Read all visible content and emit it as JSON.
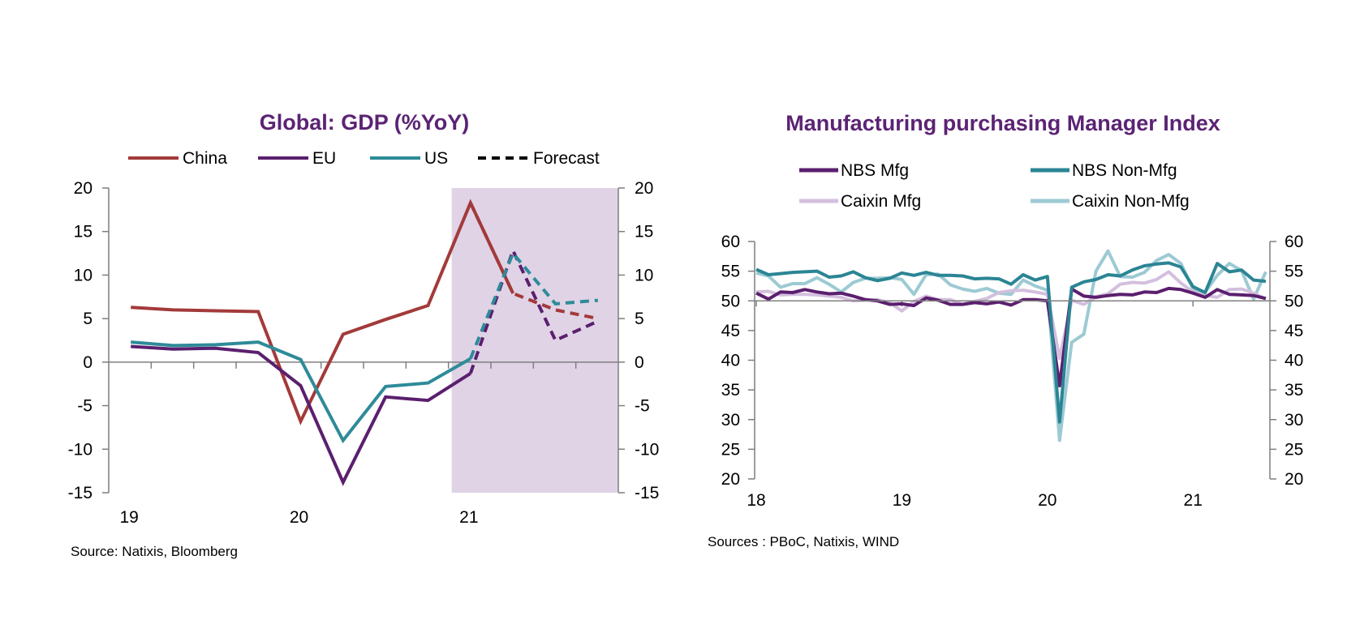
{
  "colors": {
    "title": "#5b2374",
    "shade": "#e0d3e6",
    "China": "#a33a3a",
    "EU": "#5b1f6e",
    "US": "#2e8b99",
    "Forecast": "#000000",
    "NBS Mfg": "#5b1f6e",
    "NBS Non-Mfg": "#2b8594",
    "Caixin Mfg": "#d4bfdf",
    "Caixin Non-Mfg": "#9ccad3"
  },
  "chart_data": [
    {
      "type": "line",
      "title": "Global: GDP (%YoY)",
      "xlabel": "",
      "ylabel": "",
      "ylim": [
        -15,
        20
      ],
      "yticks": [
        20,
        15,
        10,
        5,
        0,
        -5,
        -10,
        -15
      ],
      "xticks": [
        "19",
        "20",
        "21"
      ],
      "x": [
        "19Q1",
        "19Q2",
        "19Q3",
        "19Q4",
        "20Q1",
        "20Q2",
        "20Q3",
        "20Q4",
        "21Q1",
        "21Q2",
        "21Q3",
        "21Q4"
      ],
      "grid": false,
      "dual_axis": true,
      "forecast_shade_from": "21Q1",
      "legend": [
        "China",
        "EU",
        "US",
        "Forecast"
      ],
      "legend_position": "top",
      "series": [
        {
          "name": "China",
          "values": [
            6.3,
            6.0,
            5.9,
            5.8,
            -6.8,
            3.2,
            4.9,
            6.5,
            18.3,
            7.9,
            null,
            null
          ]
        },
        {
          "name": "EU",
          "values": [
            1.8,
            1.5,
            1.6,
            1.1,
            -2.7,
            -13.8,
            -4.0,
            -4.4,
            -1.3,
            null,
            null,
            null
          ]
        },
        {
          "name": "US",
          "values": [
            2.3,
            1.9,
            2.0,
            2.3,
            0.3,
            -9.0,
            -2.8,
            -2.4,
            0.4,
            null,
            null,
            null
          ]
        }
      ],
      "forecast": [
        {
          "name": "China",
          "values": [
            null,
            null,
            null,
            null,
            null,
            null,
            null,
            null,
            18.3,
            7.9,
            6.0,
            5.0
          ]
        },
        {
          "name": "EU",
          "values": [
            null,
            null,
            null,
            null,
            null,
            null,
            null,
            null,
            -1.3,
            12.8,
            2.5,
            4.7
          ]
        },
        {
          "name": "US",
          "values": [
            null,
            null,
            null,
            null,
            null,
            null,
            null,
            null,
            0.4,
            12.5,
            6.7,
            7.1
          ]
        }
      ],
      "source": "Source: Natixis, Bloomberg"
    },
    {
      "type": "line",
      "title": "Manufacturing purchasing Manager Index",
      "xlabel": "",
      "ylabel": "",
      "ylim": [
        20,
        60
      ],
      "yticks": [
        60,
        55,
        50,
        45,
        40,
        35,
        30,
        25,
        20
      ],
      "xticks": [
        "18",
        "19",
        "20",
        "21"
      ],
      "x_start": "2018-01",
      "x_end": "2021-07",
      "grid": false,
      "dual_axis": true,
      "reference_line": 50,
      "legend": [
        "NBS Mfg",
        "NBS Non-Mfg",
        "Caixin Mfg",
        "Caixin Non-Mfg"
      ],
      "legend_position": "top",
      "series": [
        {
          "name": "NBS Mfg",
          "values": [
            51.3,
            50.3,
            51.5,
            51.4,
            51.9,
            51.5,
            51.2,
            51.3,
            50.8,
            50.2,
            50.0,
            49.4,
            49.5,
            49.2,
            50.5,
            50.1,
            49.4,
            49.4,
            49.7,
            49.5,
            49.8,
            49.3,
            50.2,
            50.2,
            50.0,
            35.7,
            52.0,
            50.8,
            50.6,
            50.9,
            51.1,
            51.0,
            51.5,
            51.4,
            52.1,
            51.9,
            51.3,
            50.6,
            51.9,
            51.1,
            51.0,
            50.9,
            50.4
          ]
        },
        {
          "name": "NBS Non-Mfg",
          "values": [
            55.3,
            54.4,
            54.6,
            54.8,
            54.9,
            55.0,
            54.0,
            54.2,
            54.9,
            53.9,
            53.4,
            53.8,
            54.7,
            54.3,
            54.8,
            54.3,
            54.3,
            54.2,
            53.7,
            53.8,
            53.7,
            52.8,
            54.4,
            53.5,
            54.1,
            29.6,
            52.3,
            53.2,
            53.6,
            54.4,
            54.2,
            55.2,
            55.9,
            56.2,
            56.4,
            55.7,
            52.4,
            51.4,
            56.3,
            54.9,
            55.2,
            53.5,
            53.3
          ]
        },
        {
          "name": "Caixin Mfg",
          "values": [
            51.5,
            51.6,
            51.0,
            51.1,
            51.1,
            51.0,
            50.8,
            50.6,
            50.0,
            50.1,
            50.2,
            49.7,
            48.3,
            49.9,
            50.8,
            50.2,
            50.2,
            49.4,
            49.9,
            50.4,
            51.4,
            51.7,
            51.8,
            51.5,
            51.1,
            40.3,
            50.1,
            49.4,
            50.7,
            51.2,
            52.8,
            53.1,
            53.0,
            53.6,
            54.9,
            53.0,
            51.5,
            50.9,
            50.6,
            51.9,
            52.0,
            51.3,
            50.3
          ]
        },
        {
          "name": "Caixin Non-Mfg",
          "values": [
            54.7,
            54.2,
            52.3,
            52.9,
            52.9,
            53.9,
            52.8,
            51.5,
            53.1,
            53.8,
            53.8,
            53.9,
            53.6,
            51.1,
            54.4,
            54.5,
            52.7,
            52.0,
            51.6,
            52.1,
            51.3,
            51.1,
            53.5,
            52.5,
            51.8,
            26.5,
            43.0,
            44.4,
            55.0,
            58.4,
            54.1,
            54.0,
            54.8,
            56.8,
            57.8,
            56.3,
            52.0,
            51.5,
            54.3,
            56.3,
            55.1,
            50.3,
            54.9
          ]
        }
      ],
      "source": "Sources :  PBoC, Natixis, WIND"
    }
  ]
}
